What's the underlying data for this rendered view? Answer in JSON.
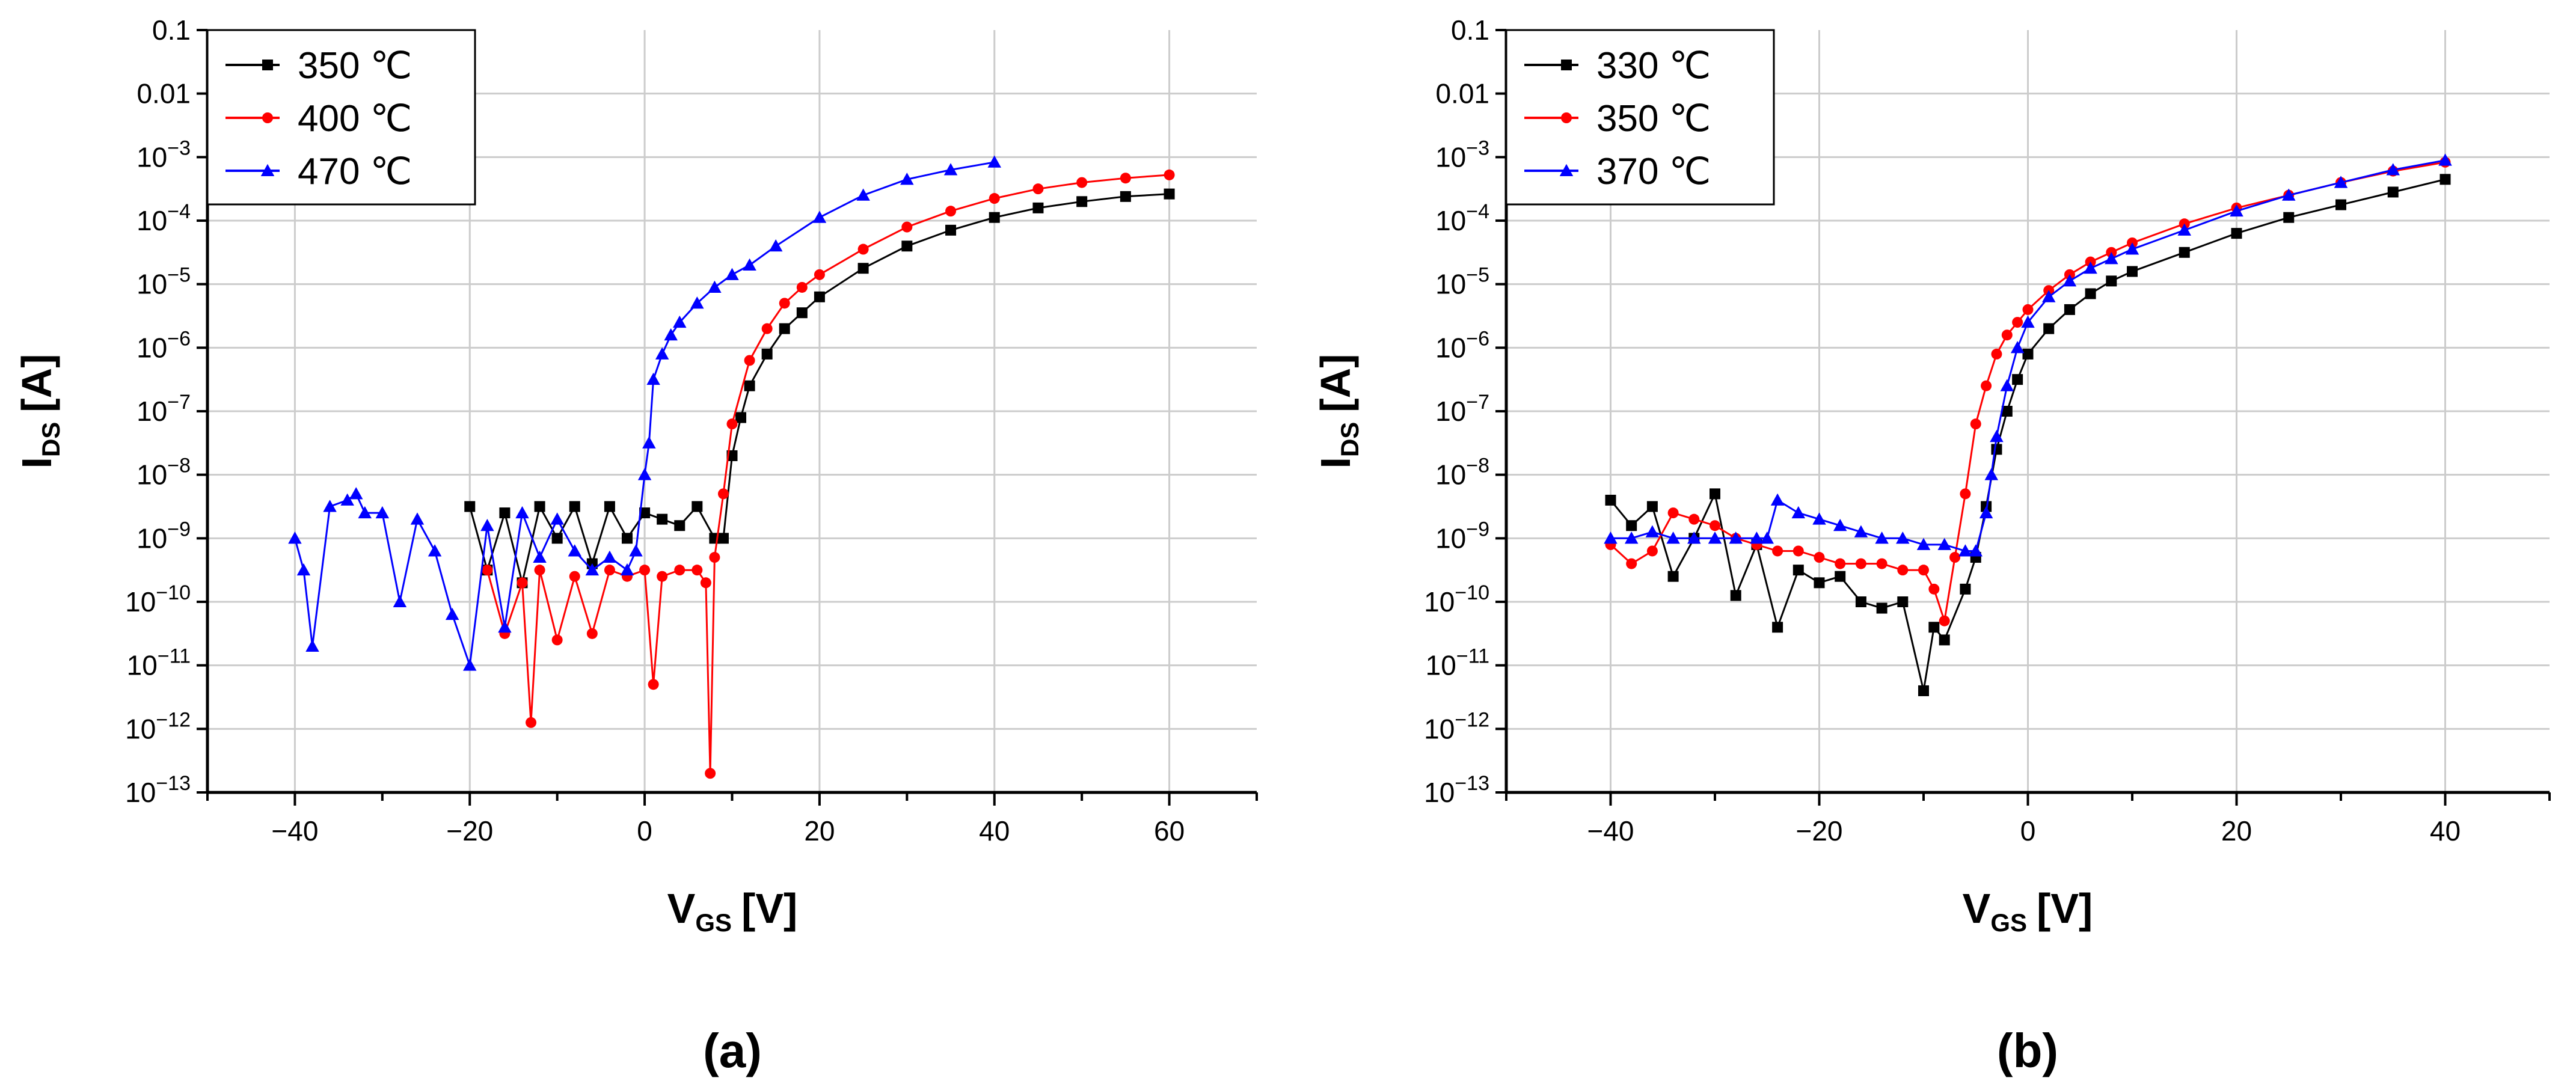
{
  "chart_data": [
    {
      "type": "scatter",
      "panel_label": "(a)",
      "xlabel": "V",
      "xlabel_sub": "GS",
      "xlabel_unit": "[V]",
      "ylabel": "I",
      "ylabel_sub": "DS",
      "ylabel_unit": "[A]",
      "xlim": [
        -50,
        70
      ],
      "ylim_log10": [
        -13,
        -1
      ],
      "xticks": [
        -40,
        -20,
        0,
        20,
        40,
        60
      ],
      "xtick_labels": [
        "−40",
        "−20",
        "0",
        "20",
        "40",
        "60"
      ],
      "grid": true,
      "legend_position": "top-left",
      "series": [
        {
          "name": "350 ℃",
          "color": "#000000",
          "marker": "square",
          "x": [
            -20,
            -18,
            -16,
            -14,
            -12,
            -10,
            -8,
            -6,
            -4,
            -2,
            0,
            2,
            4,
            6,
            8,
            9,
            10,
            11,
            12,
            14,
            16,
            18,
            20,
            25,
            30,
            35,
            40,
            45,
            50,
            55,
            60
          ],
          "y_log10": [
            -8.5,
            -9.5,
            -8.6,
            -9.7,
            -8.5,
            -9.0,
            -8.5,
            -9.4,
            -8.5,
            -9.0,
            -8.6,
            -8.7,
            -8.8,
            -8.5,
            -9.0,
            -9.0,
            -7.7,
            -7.1,
            -6.6,
            -6.1,
            -5.7,
            -5.45,
            -5.2,
            -4.75,
            -4.4,
            -4.15,
            -3.95,
            -3.8,
            -3.7,
            -3.62,
            -3.58
          ]
        },
        {
          "name": "400 ℃",
          "color": "#ff0000",
          "marker": "circle",
          "x": [
            -18,
            -16,
            -14,
            -13,
            -12,
            -10,
            -8,
            -6,
            -4,
            -2,
            0,
            1,
            2,
            4,
            6,
            7,
            7.5,
            8,
            9,
            10,
            12,
            14,
            16,
            18,
            20,
            25,
            30,
            35,
            40,
            45,
            50,
            55,
            60
          ],
          "y_log10": [
            -9.5,
            -10.5,
            -9.7,
            -11.9,
            -9.5,
            -10.6,
            -9.6,
            -10.5,
            -9.5,
            -9.6,
            -9.5,
            -11.3,
            -9.6,
            -9.5,
            -9.5,
            -9.7,
            -12.7,
            -9.3,
            -8.3,
            -7.2,
            -6.2,
            -5.7,
            -5.3,
            -5.05,
            -4.85,
            -4.45,
            -4.1,
            -3.85,
            -3.65,
            -3.5,
            -3.4,
            -3.33,
            -3.28
          ]
        },
        {
          "name": "470 ℃",
          "color": "#0000ff",
          "marker": "triangle",
          "x": [
            -40,
            -39,
            -38,
            -36,
            -34,
            -33,
            -32,
            -30,
            -28,
            -26,
            -24,
            -22,
            -20,
            -18,
            -16,
            -14,
            -12,
            -10,
            -8,
            -6,
            -4,
            -2,
            -1,
            0,
            0.5,
            1,
            2,
            3,
            4,
            6,
            8,
            10,
            12,
            15,
            20,
            25,
            30,
            35,
            40
          ],
          "y_log10": [
            -9.0,
            -9.5,
            -10.7,
            -8.5,
            -8.4,
            -8.3,
            -8.6,
            -8.6,
            -10.0,
            -8.7,
            -9.2,
            -10.2,
            -11.0,
            -8.8,
            -10.4,
            -8.6,
            -9.3,
            -8.7,
            -9.2,
            -9.5,
            -9.3,
            -9.5,
            -9.2,
            -8.0,
            -7.5,
            -6.5,
            -6.1,
            -5.8,
            -5.6,
            -5.3,
            -5.05,
            -4.85,
            -4.7,
            -4.4,
            -3.95,
            -3.6,
            -3.35,
            -3.2,
            -3.08
          ]
        }
      ]
    },
    {
      "type": "scatter",
      "panel_label": "(b)",
      "xlabel": "V",
      "xlabel_sub": "GS",
      "xlabel_unit": "[V]",
      "ylabel": "I",
      "ylabel_sub": "DS",
      "ylabel_unit": "[A]",
      "xlim": [
        -50,
        50
      ],
      "ylim_log10": [
        -13,
        -1
      ],
      "xticks": [
        -40,
        -20,
        0,
        20,
        40
      ],
      "xtick_labels": [
        "−40",
        "−20",
        "0",
        "20",
        "40"
      ],
      "grid": true,
      "legend_position": "top-left",
      "series": [
        {
          "name": "330 ℃",
          "color": "#000000",
          "marker": "square",
          "x": [
            -40,
            -38,
            -36,
            -34,
            -32,
            -30,
            -28,
            -26,
            -24,
            -22,
            -20,
            -18,
            -16,
            -14,
            -12,
            -10,
            -9,
            -8,
            -6,
            -5,
            -4,
            -3,
            -2,
            -1,
            0,
            2,
            4,
            6,
            8,
            10,
            15,
            20,
            25,
            30,
            35,
            40
          ],
          "y_log10": [
            -8.4,
            -8.8,
            -8.5,
            -9.6,
            -9.0,
            -8.3,
            -9.9,
            -9.1,
            -10.4,
            -9.5,
            -9.7,
            -9.6,
            -10.0,
            -10.1,
            -10.0,
            -11.4,
            -10.4,
            -10.6,
            -9.8,
            -9.3,
            -8.5,
            -7.6,
            -7.0,
            -6.5,
            -6.1,
            -5.7,
            -5.4,
            -5.15,
            -4.95,
            -4.8,
            -4.5,
            -4.2,
            -3.95,
            -3.75,
            -3.55,
            -3.35
          ]
        },
        {
          "name": "350 ℃",
          "color": "#ff0000",
          "marker": "circle",
          "x": [
            -40,
            -38,
            -36,
            -34,
            -32,
            -30,
            -28,
            -26,
            -24,
            -22,
            -20,
            -18,
            -16,
            -14,
            -12,
            -10,
            -9,
            -8,
            -7,
            -6,
            -5,
            -4,
            -3,
            -2,
            -1,
            0,
            2,
            4,
            6,
            8,
            10,
            15,
            20,
            25,
            30,
            35,
            40
          ],
          "y_log10": [
            -9.1,
            -9.4,
            -9.2,
            -8.6,
            -8.7,
            -8.8,
            -9.0,
            -9.1,
            -9.2,
            -9.2,
            -9.3,
            -9.4,
            -9.4,
            -9.4,
            -9.5,
            -9.5,
            -9.8,
            -10.3,
            -9.3,
            -8.3,
            -7.2,
            -6.6,
            -6.1,
            -5.8,
            -5.6,
            -5.4,
            -5.1,
            -4.85,
            -4.65,
            -4.5,
            -4.35,
            -4.05,
            -3.8,
            -3.6,
            -3.4,
            -3.22,
            -3.08
          ]
        },
        {
          "name": "370 ℃",
          "color": "#0000ff",
          "marker": "triangle",
          "x": [
            -40,
            -38,
            -36,
            -34,
            -32,
            -30,
            -28,
            -26,
            -25,
            -24,
            -22,
            -20,
            -18,
            -16,
            -14,
            -12,
            -10,
            -8,
            -6,
            -5,
            -4,
            -3.5,
            -3,
            -2,
            -1,
            0,
            2,
            4,
            6,
            8,
            10,
            15,
            20,
            25,
            30,
            35,
            40
          ],
          "y_log10": [
            -9.0,
            -9.0,
            -8.9,
            -9.0,
            -9.0,
            -9.0,
            -9.0,
            -9.0,
            -9.0,
            -8.4,
            -8.6,
            -8.7,
            -8.8,
            -8.9,
            -9.0,
            -9.0,
            -9.1,
            -9.1,
            -9.2,
            -9.2,
            -8.6,
            -8.0,
            -7.4,
            -6.6,
            -6.0,
            -5.6,
            -5.2,
            -4.95,
            -4.75,
            -4.6,
            -4.45,
            -4.15,
            -3.85,
            -3.6,
            -3.4,
            -3.2,
            -3.05
          ]
        }
      ]
    }
  ],
  "y_tick_labels": [
    {
      "mant": "0.1",
      "exp": ""
    },
    {
      "mant": "0.01",
      "exp": ""
    },
    {
      "mant": "10",
      "exp": "−3"
    },
    {
      "mant": "10",
      "exp": "−4"
    },
    {
      "mant": "10",
      "exp": "−5"
    },
    {
      "mant": "10",
      "exp": "−6"
    },
    {
      "mant": "10",
      "exp": "−7"
    },
    {
      "mant": "10",
      "exp": "−8"
    },
    {
      "mant": "10",
      "exp": "−9"
    },
    {
      "mant": "10",
      "exp": "−10"
    },
    {
      "mant": "10",
      "exp": "−11"
    },
    {
      "mant": "10",
      "exp": "−12"
    },
    {
      "mant": "10",
      "exp": "−13"
    }
  ],
  "colors": {
    "grid": "#cccccc",
    "axis": "#000000"
  }
}
